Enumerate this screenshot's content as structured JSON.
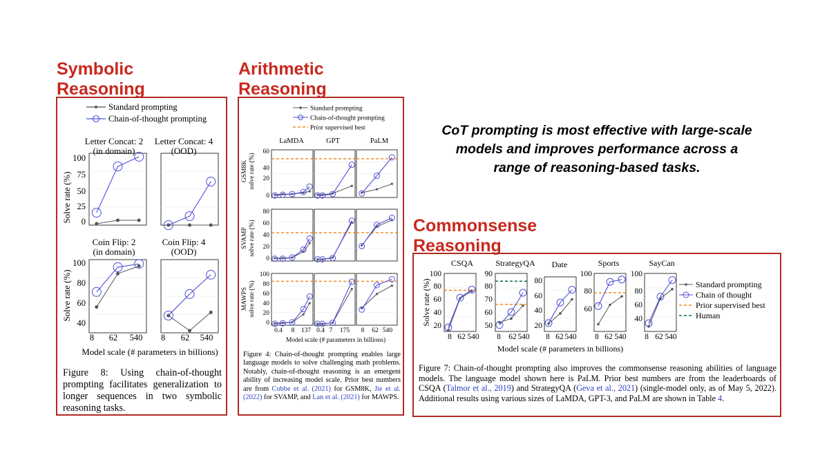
{
  "headline": {
    "lines": [
      "CoT prompting is most effective with large-scale",
      "models and improves performance across a",
      "range of reasoning-based tasks."
    ]
  },
  "sections": {
    "symbolic": {
      "line1": "Symbolic",
      "line2": "Reasoning"
    },
    "arithmetic": {
      "line1": "Arithmetic",
      "line2": "Reasoning"
    },
    "commonsense": {
      "line1": "Commonsense",
      "line2": "Reasoning"
    }
  },
  "colors": {
    "accent": "#c8281e",
    "standard": "#555555",
    "cot": "#4e50d6",
    "prior": "#f08a24",
    "human": "#0d6b4a"
  },
  "symbolic": {
    "legend": {
      "standard": "Standard prompting",
      "cot": "Chain-of-thought prompting"
    },
    "ylabel": "Solve rate (%)",
    "xlabel": "Model scale (# parameters in billions)",
    "row1_titles": [
      [
        "Letter Concat: 2",
        "(in domain)"
      ],
      [
        "Letter Concat: 4",
        "(OOD)"
      ]
    ],
    "row2_titles": [
      [
        "Coin Flip: 2",
        "(in domain)"
      ],
      [
        "Coin Flip: 4",
        "(OOD)"
      ]
    ],
    "row1_yticks": [
      "100",
      "75",
      "50",
      "25",
      "0"
    ],
    "row2_yticks": [
      "100",
      "80",
      "60",
      "40"
    ],
    "xticks": [
      "8",
      "62",
      "540"
    ],
    "caption": "Figure 8: Using chain-of-thought prompting facilitates generalization to longer sequences in two symbolic reasoning tasks."
  },
  "arithmetic": {
    "legend": {
      "standard": "Standard prompting",
      "cot": "Chain-of-thought prompting",
      "prior": "Prior supervised best"
    },
    "col_titles": [
      "LaMDA",
      "GPT",
      "PaLM"
    ],
    "row_labels": [
      [
        "GSM8K",
        "solve rate (%)"
      ],
      [
        "SVAMP",
        "solve rate (%)"
      ],
      [
        "MAWPS",
        "solve rate (%)"
      ]
    ],
    "yticks_r1": [
      "60",
      "40",
      "20",
      "0"
    ],
    "yticks_r2": [
      "80",
      "60",
      "40",
      "20",
      "0"
    ],
    "yticks_r3": [
      "100",
      "80",
      "60",
      "40",
      "20",
      "0"
    ],
    "xticks": [
      [
        "0.4",
        "8",
        "137"
      ],
      [
        "0.4",
        "7",
        "175"
      ],
      [
        "8",
        "62",
        "540"
      ]
    ],
    "xlabel": "Model scale (# parameters in billions)",
    "caption_parts": [
      "Figure 4: Chain-of-thought prompting enables large language models to solve challenging math problems. Notably, chain-of-thought reasoning is an emergent ability of increasing model scale. Prior best numbers are from ",
      "Cobbe et al. (2021)",
      " for GSM8K, ",
      "Jie et al. (2022)",
      " for SVAMP, and ",
      "Lan et al. (2021)",
      " for MAWPS."
    ]
  },
  "commonsense": {
    "titles": [
      "CSQA",
      "StrategyQA",
      "Date",
      "Sports",
      "SayCan"
    ],
    "ylabel": "Solve rate (%)",
    "xlabel": "Model scale (# parameters in billions)",
    "yticks": [
      [
        "100",
        "80",
        "60",
        "40",
        "20"
      ],
      [
        "90",
        "80",
        "70",
        "60",
        "50"
      ],
      [
        "80",
        "60",
        "40",
        "20"
      ],
      [
        "100",
        "80",
        "60"
      ],
      [
        "100",
        "80",
        "60",
        "40"
      ]
    ],
    "xticks": [
      "8",
      "62",
      "540"
    ],
    "legend": {
      "standard": "Standard prompting",
      "cot": "Chain of thought",
      "prior": "Prior supervised best",
      "human": "Human"
    },
    "caption_parts": [
      "Figure 7: Chain-of-thought prompting also improves the commonsense reasoning abilities of language models. The language model shown here is PaLM. Prior best numbers are from the leaderboards of CSQA (",
      "Talmor et al., 2019",
      ") and StrategyQA (",
      "Geva et al., 2021",
      ") (single-model only, as of May 5, 2022). Additional results using various sizes of LaMDA, GPT-3, and PaLM are shown in Table ",
      "4",
      "."
    ]
  },
  "chart_data": [
    {
      "type": "line",
      "title": "Letter Concat: 2 (in domain)",
      "x": [
        8,
        62,
        540
      ],
      "ylabel": "Solve rate (%)",
      "ylim": [
        0,
        100
      ],
      "series": [
        {
          "name": "Standard prompting",
          "values": [
            2,
            7,
            7
          ]
        },
        {
          "name": "Chain-of-thought prompting",
          "values": [
            18,
            85,
            99
          ]
        }
      ]
    },
    {
      "type": "line",
      "title": "Letter Concat: 4 (OOD)",
      "x": [
        8,
        62,
        540
      ],
      "ylim": [
        0,
        100
      ],
      "series": [
        {
          "name": "Standard prompting",
          "values": [
            0,
            0,
            0
          ]
        },
        {
          "name": "Chain-of-thought prompting",
          "values": [
            0,
            13,
            63
          ]
        }
      ]
    },
    {
      "type": "line",
      "title": "Coin Flip: 2 (in domain)",
      "x": [
        8,
        62,
        540
      ],
      "ylabel": "Solve rate (%)",
      "ylim": [
        38,
        102
      ],
      "series": [
        {
          "name": "Standard prompting",
          "values": [
            60,
            91,
            98
          ]
        },
        {
          "name": "Chain-of-thought prompting",
          "values": [
            74,
            97,
            100
          ]
        }
      ]
    },
    {
      "type": "line",
      "title": "Coin Flip: 4 (OOD)",
      "x": [
        8,
        62,
        540
      ],
      "ylim": [
        38,
        102
      ],
      "series": [
        {
          "name": "Standard prompting",
          "values": [
            52,
            38,
            55
          ]
        },
        {
          "name": "Chain-of-thought prompting",
          "values": [
            52,
            72,
            90
          ]
        }
      ]
    },
    {
      "type": "line",
      "title": "GSM8K LaMDA",
      "x": [
        0.4,
        2,
        8,
        68,
        137
      ],
      "ylim": [
        0,
        60
      ],
      "prior": 55,
      "series": [
        {
          "name": "Standard prompting",
          "values": [
            2,
            3,
            3,
            5,
            7
          ]
        },
        {
          "name": "Chain-of-thought prompting",
          "values": [
            1,
            2,
            3,
            6,
            14
          ]
        }
      ]
    },
    {
      "type": "line",
      "title": "GSM8K GPT",
      "x": [
        0.4,
        1.3,
        7,
        175
      ],
      "ylim": [
        0,
        60
      ],
      "prior": 55,
      "series": [
        {
          "name": "Standard prompting",
          "values": [
            2,
            2,
            4,
            15
          ]
        },
        {
          "name": "Chain-of-thought prompting",
          "values": [
            1,
            1,
            3,
            46
          ]
        }
      ]
    },
    {
      "type": "line",
      "title": "GSM8K PaLM",
      "x": [
        8,
        62,
        540
      ],
      "ylim": [
        0,
        60
      ],
      "prior": 55,
      "series": [
        {
          "name": "Standard prompting",
          "values": [
            5,
            10,
            18
          ]
        },
        {
          "name": "Chain-of-thought prompting",
          "values": [
            4,
            30,
            57
          ]
        }
      ]
    },
    {
      "type": "line",
      "title": "SVAMP LaMDA",
      "x": [
        0.4,
        2,
        8,
        68,
        137
      ],
      "ylim": [
        0,
        80
      ],
      "prior": 47,
      "series": [
        {
          "name": "Standard prompting",
          "values": [
            3,
            3,
            4,
            14,
            29
          ]
        },
        {
          "name": "Chain-of-thought prompting",
          "values": [
            2,
            2,
            4,
            18,
            37
          ]
        }
      ]
    },
    {
      "type": "line",
      "title": "SVAMP GPT",
      "x": [
        0.4,
        1.3,
        7,
        175
      ],
      "ylim": [
        0,
        80
      ],
      "prior": 47,
      "series": [
        {
          "name": "Standard prompting",
          "values": [
            1,
            1,
            4,
            65
          ]
        },
        {
          "name": "Chain-of-thought prompting",
          "values": [
            1,
            1,
            3,
            68
          ]
        }
      ]
    },
    {
      "type": "line",
      "title": "SVAMP PaLM",
      "x": [
        8,
        62,
        540
      ],
      "ylim": [
        0,
        80
      ],
      "prior": 47,
      "series": [
        {
          "name": "Standard prompting",
          "values": [
            25,
            58,
            69
          ]
        },
        {
          "name": "Chain-of-thought prompting",
          "values": [
            24,
            61,
            73
          ]
        }
      ]
    },
    {
      "type": "line",
      "title": "MAWPS LaMDA",
      "x": [
        0.4,
        2,
        8,
        68,
        137
      ],
      "ylim": [
        0,
        100
      ],
      "prior": 88,
      "series": [
        {
          "name": "Standard prompting",
          "values": [
            2,
            3,
            4,
            20,
            43
          ]
        },
        {
          "name": "Chain-of-thought prompting",
          "values": [
            1,
            2,
            4,
            31,
            57
          ]
        }
      ]
    },
    {
      "type": "line",
      "title": "MAWPS GPT",
      "x": [
        0.4,
        1.3,
        7,
        175
      ],
      "ylim": [
        0,
        100
      ],
      "prior": 88,
      "series": [
        {
          "name": "Standard prompting",
          "values": [
            1,
            1,
            3,
            72
          ]
        },
        {
          "name": "Chain-of-thought prompting",
          "values": [
            1,
            1,
            3,
            87
          ]
        }
      ]
    },
    {
      "type": "line",
      "title": "MAWPS PaLM",
      "x": [
        8,
        62,
        540
      ],
      "ylim": [
        0,
        100
      ],
      "prior": 88,
      "series": [
        {
          "name": "Standard prompting",
          "values": [
            33,
            62,
            79
          ]
        },
        {
          "name": "Chain-of-thought prompting",
          "values": [
            30,
            80,
            92
          ]
        }
      ]
    },
    {
      "type": "line",
      "title": "CSQA",
      "x": [
        8,
        62,
        540
      ],
      "ylabel": "Solve rate (%)",
      "ylim": [
        20,
        100
      ],
      "prior": 79,
      "series": [
        {
          "name": "Standard prompting",
          "values": [
            20,
            67,
            78
          ]
        },
        {
          "name": "Chain of thought",
          "values": [
            24,
            68,
            80
          ]
        }
      ]
    },
    {
      "type": "line",
      "title": "StrategyQA",
      "x": [
        8,
        62,
        540
      ],
      "ylim": [
        50,
        90
      ],
      "prior": 69,
      "human": 87,
      "series": [
        {
          "name": "Standard prompting",
          "values": [
            55,
            58,
            68
          ]
        },
        {
          "name": "Chain of thought",
          "values": [
            53,
            63,
            78
          ]
        }
      ]
    },
    {
      "type": "line",
      "title": "Date",
      "x": [
        8,
        62,
        540
      ],
      "ylim": [
        0,
        80
      ],
      "series": [
        {
          "name": "Standard prompting",
          "values": [
            12,
            28,
            50
          ]
        },
        {
          "name": "Chain of thought",
          "values": [
            13,
            45,
            65
          ]
        }
      ]
    },
    {
      "type": "line",
      "title": "Sports",
      "x": [
        8,
        62,
        540
      ],
      "ylim": [
        55,
        100
      ],
      "prior": 84,
      "series": [
        {
          "name": "Standard prompting",
          "values": [
            58,
            74,
            81
          ]
        },
        {
          "name": "Chain of thought",
          "values": [
            73,
            93,
            95
          ]
        }
      ]
    },
    {
      "type": "line",
      "title": "SayCan",
      "x": [
        8,
        62,
        540
      ],
      "ylim": [
        30,
        100
      ],
      "series": [
        {
          "name": "Standard prompting",
          "values": [
            36,
            70,
            81
          ]
        },
        {
          "name": "Chain of thought",
          "values": [
            40,
            72,
            92
          ]
        }
      ]
    }
  ]
}
